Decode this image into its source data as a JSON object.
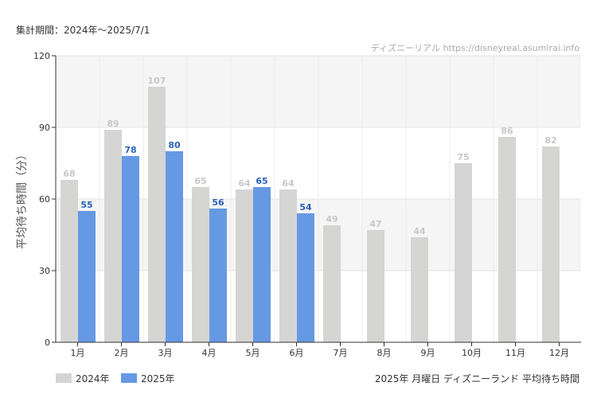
{
  "period_label": "集計期間：2024年～2025/7/1",
  "credit": "ディズニーリアル https://disneyreal.asumirai.info",
  "caption": "2025年 月曜日 ディズニーランド 平均待ち時間",
  "chart_data": {
    "type": "bar",
    "ylabel": "平均待ち時間（分）",
    "ylim": [
      0,
      120
    ],
    "yticks": [
      "0",
      "30",
      "60",
      "90",
      "120"
    ],
    "categories": [
      "1月",
      "2月",
      "3月",
      "4月",
      "5月",
      "6月",
      "7月",
      "8月",
      "9月",
      "10月",
      "11月",
      "12月"
    ],
    "series": [
      {
        "name": "2024年",
        "color": "#d5d5d3",
        "label_color": "#c8c8c8",
        "values": [
          68,
          89,
          107,
          65,
          64,
          64,
          49,
          47,
          44,
          75,
          86,
          82
        ]
      },
      {
        "name": "2025年",
        "color": "#6699e3",
        "label_color": "#2a63b8",
        "values": [
          55,
          78,
          80,
          56,
          65,
          54,
          null,
          null,
          null,
          null,
          null,
          null
        ]
      }
    ],
    "grid": true,
    "legend_position": "bottom-left"
  }
}
